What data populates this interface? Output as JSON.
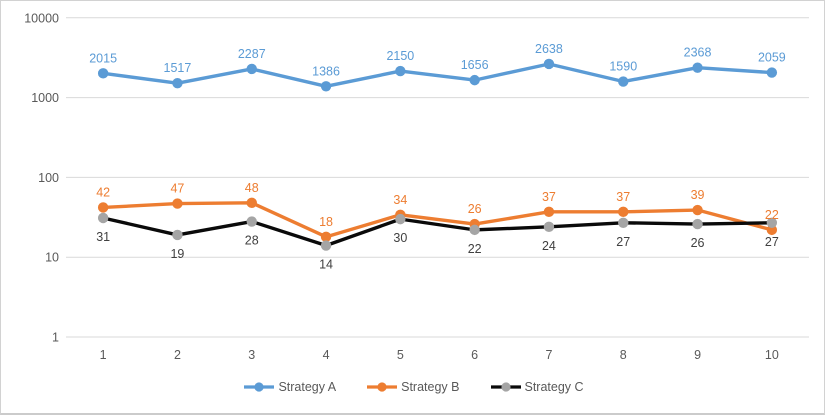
{
  "chart_data": {
    "type": "line",
    "title": "",
    "x": [
      1,
      2,
      3,
      4,
      5,
      6,
      7,
      8,
      9,
      10
    ],
    "series": [
      {
        "name": "Strategy A",
        "values": [
          2015,
          1517,
          2287,
          1386,
          2150,
          1656,
          2638,
          1590,
          2368,
          2059
        ],
        "line_color": "#5B9BD5",
        "marker_color": "#5B9BD5",
        "label_color": "#5B9BD5",
        "label_position": "above"
      },
      {
        "name": "Strategy B",
        "values": [
          42,
          47,
          48,
          18,
          34,
          26,
          37,
          37,
          39,
          22
        ],
        "line_color": "#ED7D31",
        "marker_color": "#ED7D31",
        "label_color": "#ED7D31",
        "label_position": "above"
      },
      {
        "name": "Strategy C",
        "values": [
          31,
          19,
          28,
          14,
          30,
          22,
          24,
          27,
          26,
          27
        ],
        "line_color": "#0a0a0a",
        "marker_color": "#A5A5A5",
        "label_color": "#404040",
        "label_position": "below"
      }
    ],
    "y_axis": {
      "scale": "log",
      "min": 1,
      "max": 10000,
      "tick_labels": [
        "10000",
        "1000",
        "100",
        "10",
        "1"
      ],
      "tick_values": [
        10000,
        1000,
        100,
        10,
        1
      ]
    },
    "x_axis": {
      "tick_labels": [
        "1",
        "2",
        "3",
        "4",
        "5",
        "6",
        "7",
        "8",
        "9",
        "10"
      ]
    },
    "grid": true,
    "gridline_color": "#D9D9D9",
    "axis_text_color": "#595959",
    "legend": {
      "position": "bottom",
      "entries": [
        "Strategy A",
        "Strategy B",
        "Strategy C"
      ]
    }
  }
}
